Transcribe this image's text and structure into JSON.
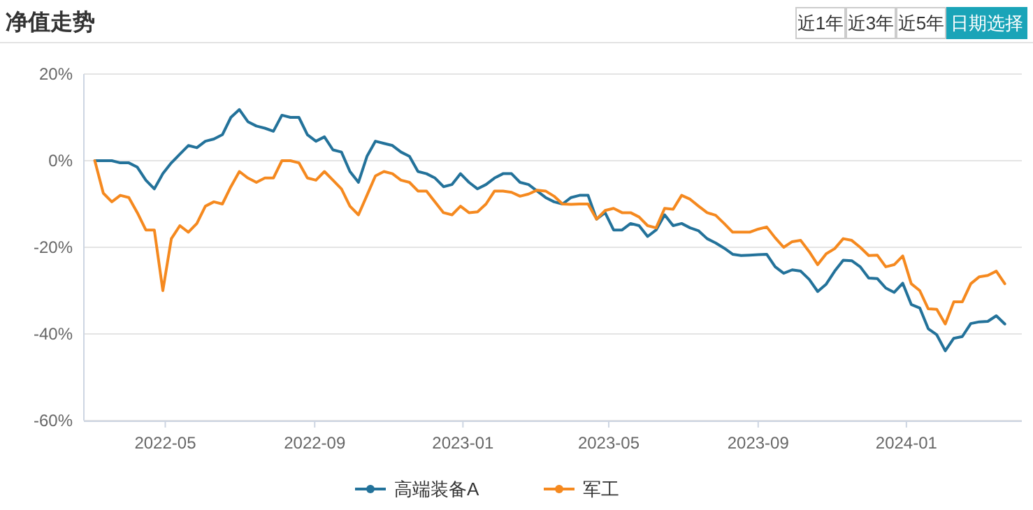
{
  "chart_data": {
    "type": "line",
    "title": "净值走势",
    "annotations": [
      "近1年",
      "近3年",
      "近5年",
      "日期选择"
    ],
    "x": [
      "2022-03-04",
      "2022-03-11",
      "2022-03-18",
      "2022-03-25",
      "2022-04-01",
      "2022-04-08",
      "2022-04-15",
      "2022-04-22",
      "2022-04-29",
      "2022-05-06",
      "2022-05-13",
      "2022-05-20",
      "2022-05-27",
      "2022-06-03",
      "2022-06-10",
      "2022-06-17",
      "2022-06-24",
      "2022-07-01",
      "2022-07-08",
      "2022-07-15",
      "2022-07-22",
      "2022-07-29",
      "2022-08-05",
      "2022-08-12",
      "2022-08-19",
      "2022-08-26",
      "2022-09-02",
      "2022-09-09",
      "2022-09-16",
      "2022-09-23",
      "2022-09-30",
      "2022-10-07",
      "2022-10-14",
      "2022-10-21",
      "2022-10-28",
      "2022-11-04",
      "2022-11-11",
      "2022-11-18",
      "2022-11-25",
      "2022-12-02",
      "2022-12-09",
      "2022-12-16",
      "2022-12-23",
      "2022-12-30",
      "2023-01-06",
      "2023-01-13",
      "2023-01-20",
      "2023-01-27",
      "2023-02-03",
      "2023-02-10",
      "2023-02-17",
      "2023-02-24",
      "2023-03-03",
      "2023-03-10",
      "2023-03-17",
      "2023-03-24",
      "2023-03-31",
      "2023-04-07",
      "2023-04-14",
      "2023-04-21",
      "2023-04-28",
      "2023-05-05",
      "2023-05-12",
      "2023-05-19",
      "2023-05-26",
      "2023-06-02",
      "2023-06-09",
      "2023-06-16",
      "2023-06-23",
      "2023-06-30",
      "2023-07-07",
      "2023-07-14",
      "2023-07-21",
      "2023-07-28",
      "2023-08-04",
      "2023-08-11",
      "2023-08-18",
      "2023-08-25",
      "2023-09-01",
      "2023-09-08",
      "2023-09-15",
      "2023-09-22",
      "2023-09-29",
      "2023-10-06",
      "2023-10-13",
      "2023-10-20",
      "2023-10-27",
      "2023-11-03",
      "2023-11-10",
      "2023-11-17",
      "2023-11-24",
      "2023-12-01",
      "2023-12-08",
      "2023-12-15",
      "2023-12-22",
      "2023-12-29",
      "2024-01-05",
      "2024-01-12",
      "2024-01-19",
      "2024-01-26",
      "2024-02-02",
      "2024-02-09",
      "2024-02-16",
      "2024-02-23",
      "2024-03-01",
      "2024-03-08",
      "2024-03-15",
      "2024-03-22"
    ],
    "series": [
      {
        "name": "高端装备A",
        "color": "#23729a",
        "values": [
          0,
          0,
          0,
          -0.5,
          -0.5,
          -1.5,
          -4.5,
          -6.5,
          -3,
          -0.5,
          1.5,
          3.5,
          3,
          4.5,
          5,
          6,
          10,
          11.8,
          9,
          8,
          7.5,
          6.8,
          10.5,
          10,
          10,
          6,
          4.5,
          5.5,
          2.5,
          2,
          -2.5,
          -5,
          1,
          4.5,
          4,
          3.5,
          2,
          1,
          -2.5,
          -3,
          -4,
          -6,
          -5.5,
          -3,
          -5,
          -6.5,
          -5.5,
          -4,
          -3,
          -3,
          -5,
          -5.5,
          -7,
          -8.5,
          -9.5,
          -10,
          -8.5,
          -8,
          -8,
          -13.5,
          -12,
          -16,
          -16,
          -14.5,
          -15,
          -17.5,
          -16,
          -12.5,
          -15,
          -14.5,
          -15.5,
          -16.2,
          -18,
          -19,
          -20.2,
          -21.6,
          -21.9,
          -21.8,
          -21.7,
          -21.6,
          -24.5,
          -26,
          -25.2,
          -25.5,
          -27.4,
          -30.2,
          -28.5,
          -25.5,
          -23,
          -23.1,
          -24.5,
          -27.1,
          -27.2,
          -29.4,
          -30.4,
          -28.3,
          -33.2,
          -34,
          -38.8,
          -40.2,
          -43.9,
          -41,
          -40.6,
          -37.6,
          -37.2,
          -37.1,
          -35.8,
          -37.7
        ]
      },
      {
        "name": "军工",
        "color": "#f5891f",
        "values": [
          0,
          -7.5,
          -9.5,
          -8,
          -8.5,
          -12,
          -16,
          -16,
          -30,
          -18,
          -15,
          -16.5,
          -14.5,
          -10.5,
          -9.5,
          -10,
          -6,
          -2.5,
          -4,
          -5,
          -4,
          -4,
          0,
          0,
          -0.5,
          -4,
          -4.5,
          -2.5,
          -4.5,
          -6.5,
          -10.5,
          -12.5,
          -8,
          -3.5,
          -2.5,
          -3,
          -4.5,
          -5,
          -7,
          -7,
          -9.5,
          -12,
          -12.5,
          -10.5,
          -12,
          -11.8,
          -10,
          -7,
          -7,
          -7.3,
          -8.2,
          -7.7,
          -6.8,
          -7,
          -8.2,
          -10,
          -10.1,
          -10,
          -10,
          -13.5,
          -11.5,
          -11,
          -12,
          -12,
          -13,
          -15,
          -15.5,
          -11,
          -11.2,
          -8,
          -8.9,
          -10.5,
          -12,
          -12.6,
          -14.5,
          -16.5,
          -16.5,
          -16.5,
          -15.8,
          -15.3,
          -17.8,
          -20,
          -18.7,
          -18.4,
          -21,
          -24,
          -21.5,
          -20.3,
          -18,
          -18.4,
          -20,
          -21.9,
          -21.8,
          -24.5,
          -24,
          -22,
          -28.4,
          -30,
          -34.2,
          -34.3,
          -37.7,
          -32.6,
          -32.6,
          -28.4,
          -26.8,
          -26.5,
          -25.5,
          -28.4
        ]
      }
    ],
    "xlim": [
      "2022-02-23",
      "2024-04-05"
    ],
    "xticks": [
      "2022-05",
      "2022-09",
      "2023-01",
      "2023-05",
      "2023-09",
      "2024-01"
    ],
    "ylim": [
      -60,
      20
    ],
    "yticks": [
      {
        "value": 20,
        "label": "20%"
      },
      {
        "value": 0,
        "label": "0%"
      },
      {
        "value": -20,
        "label": "-20%"
      },
      {
        "value": -40,
        "label": "-40%"
      },
      {
        "value": -60,
        "label": "-60%"
      }
    ],
    "grid": "y",
    "legend": "bottom",
    "marker": "none",
    "line_style": "solid"
  }
}
